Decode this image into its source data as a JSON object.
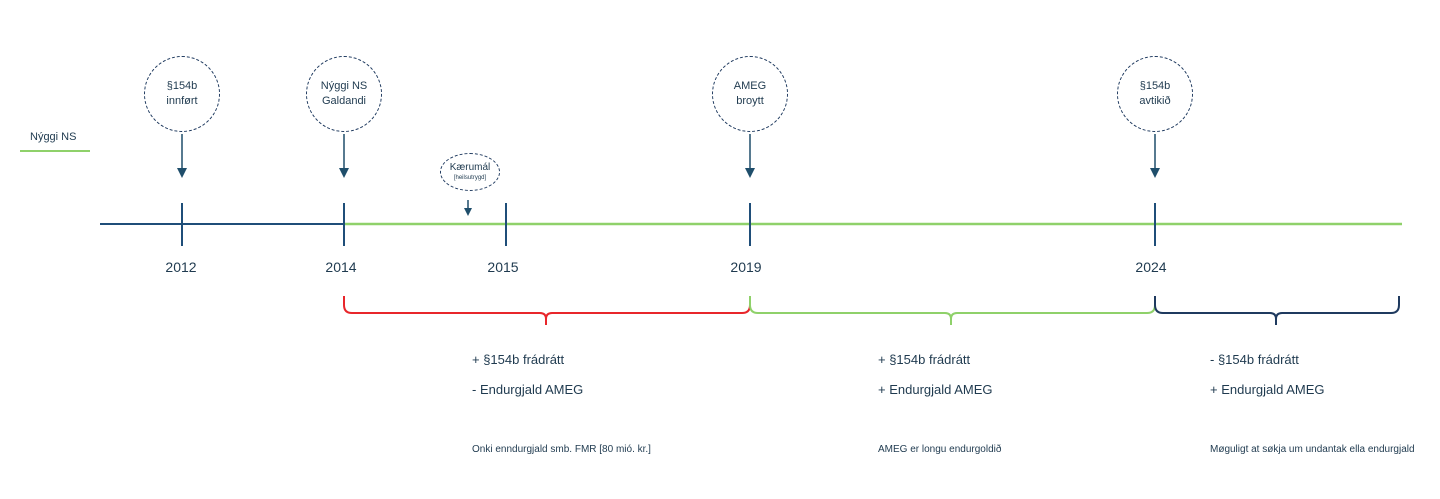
{
  "legend": {
    "label": "Nýggi NS",
    "color": "#8fd16a"
  },
  "colors": {
    "axis_dark": "#1f4e79",
    "axis_green": "#8fd16a",
    "bracket_red": "#e8262b",
    "bracket_green": "#8fd16a",
    "bracket_navy": "#1f3a5f",
    "arrow": "#1f4e6b"
  },
  "years": [
    "2012",
    "2014",
    "2015",
    "2019",
    "2024"
  ],
  "events": [
    {
      "line1": "§154b",
      "line2": "innført"
    },
    {
      "line1": "Nýggi NS",
      "line2": "Galdandi"
    },
    {
      "line1": "AMEG",
      "line2": "broytt"
    },
    {
      "line1": "§154b",
      "line2": "avtikið"
    }
  ],
  "small_event": {
    "line1": "Kærumál",
    "line2": "[heilsutrygd]"
  },
  "periods": [
    {
      "line1": "+ §154b frádrátt",
      "line2": "- Endurgjald AMEG",
      "note": "Onki enndurgjald smb. FMR [80 mió. kr.]"
    },
    {
      "line1": "+ §154b frádrátt",
      "line2": "+ Endurgjald AMEG",
      "note": "AMEG er longu endurgoldið"
    },
    {
      "line1": "- §154b frádrátt",
      "line2": "+ Endurgjald AMEG",
      "note": "Møguligt at søkja um undantak ella endurgjald"
    }
  ]
}
